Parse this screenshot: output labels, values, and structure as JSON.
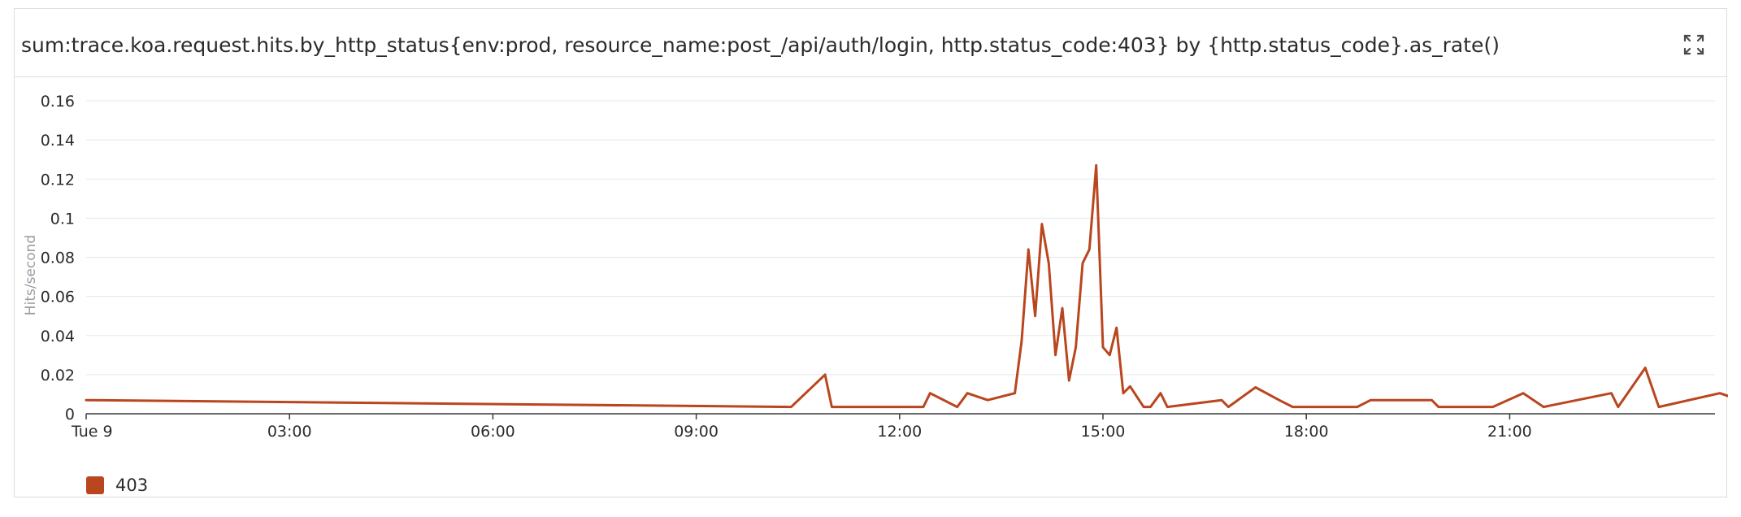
{
  "widget": {
    "title": "sum:trace.koa.request.hits.by_http_status{env:prod, resource_name:post_/api/auth/login, http.status_code:403} by {http.status_code}.as_rate()",
    "expand_icon": "expand-icon"
  },
  "colors": {
    "series": "#b9461e",
    "grid": "#e6e7eb",
    "axis": "#3a3a3d",
    "text": "#2b2b2e",
    "axis_title": "#9a9ba2"
  },
  "chart_data": {
    "type": "line",
    "title": "sum:trace.koa.request.hits.by_http_status{env:prod, resource_name:post_/api/auth/login, http.status_code:403} by {http.status_code}.as_rate()",
    "ylabel": "Hits/second",
    "xlabel": "",
    "x_unit": "hours",
    "xlim": [
      0,
      24
    ],
    "ylim": [
      0,
      0.16
    ],
    "grid": true,
    "legend_position": "bottom-left",
    "y_ticks": [
      {
        "value": 0,
        "label": "0"
      },
      {
        "value": 0.02,
        "label": "0.02"
      },
      {
        "value": 0.04,
        "label": "0.04"
      },
      {
        "value": 0.06,
        "label": "0.06"
      },
      {
        "value": 0.08,
        "label": "0.08"
      },
      {
        "value": 0.1,
        "label": "0.1"
      },
      {
        "value": 0.12,
        "label": "0.12"
      },
      {
        "value": 0.14,
        "label": "0.14"
      },
      {
        "value": 0.16,
        "label": "0.16"
      }
    ],
    "x_ticks": [
      {
        "value": 0,
        "label": "Tue 9"
      },
      {
        "value": 3,
        "label": "03:00"
      },
      {
        "value": 6,
        "label": "06:00"
      },
      {
        "value": 9,
        "label": "09:00"
      },
      {
        "value": 12,
        "label": "12:00"
      },
      {
        "value": 15,
        "label": "15:00"
      },
      {
        "value": 18,
        "label": "18:00"
      },
      {
        "value": 21,
        "label": "21:00"
      }
    ],
    "series": [
      {
        "name": "403",
        "color": "#b9461e",
        "points": [
          [
            0,
            0.007
          ],
          [
            10.4,
            0.0035
          ],
          [
            10.9,
            0.02
          ],
          [
            11.0,
            0.0035
          ],
          [
            12.35,
            0.0035
          ],
          [
            12.45,
            0.0105
          ],
          [
            12.85,
            0.0035
          ],
          [
            13.0,
            0.0105
          ],
          [
            13.3,
            0.007
          ],
          [
            13.7,
            0.0105
          ],
          [
            13.8,
            0.037
          ],
          [
            13.9,
            0.084
          ],
          [
            14.0,
            0.05
          ],
          [
            14.1,
            0.097
          ],
          [
            14.2,
            0.077
          ],
          [
            14.3,
            0.03
          ],
          [
            14.4,
            0.054
          ],
          [
            14.5,
            0.017
          ],
          [
            14.6,
            0.034
          ],
          [
            14.7,
            0.077
          ],
          [
            14.8,
            0.084
          ],
          [
            14.9,
            0.127
          ],
          [
            15.0,
            0.034
          ],
          [
            15.1,
            0.03
          ],
          [
            15.2,
            0.044
          ],
          [
            15.3,
            0.0105
          ],
          [
            15.4,
            0.014
          ],
          [
            15.6,
            0.0035
          ],
          [
            15.7,
            0.0035
          ],
          [
            15.85,
            0.0105
          ],
          [
            15.95,
            0.0035
          ],
          [
            16.75,
            0.007
          ],
          [
            16.85,
            0.0035
          ],
          [
            17.25,
            0.0135
          ],
          [
            17.6,
            0.007
          ],
          [
            17.8,
            0.0035
          ],
          [
            18.75,
            0.0035
          ],
          [
            18.95,
            0.007
          ],
          [
            19.85,
            0.007
          ],
          [
            19.95,
            0.0035
          ],
          [
            20.75,
            0.0035
          ],
          [
            21.2,
            0.0105
          ],
          [
            21.5,
            0.0035
          ],
          [
            22.5,
            0.0105
          ],
          [
            22.6,
            0.0035
          ],
          [
            23.0,
            0.0235
          ],
          [
            23.2,
            0.0035
          ],
          [
            24.1,
            0.0105
          ],
          [
            24.4,
            0.007
          ],
          [
            24.7,
            0.0095
          ]
        ]
      }
    ]
  },
  "legend": {
    "items": [
      {
        "label": "403",
        "color": "#b9461e"
      }
    ]
  }
}
